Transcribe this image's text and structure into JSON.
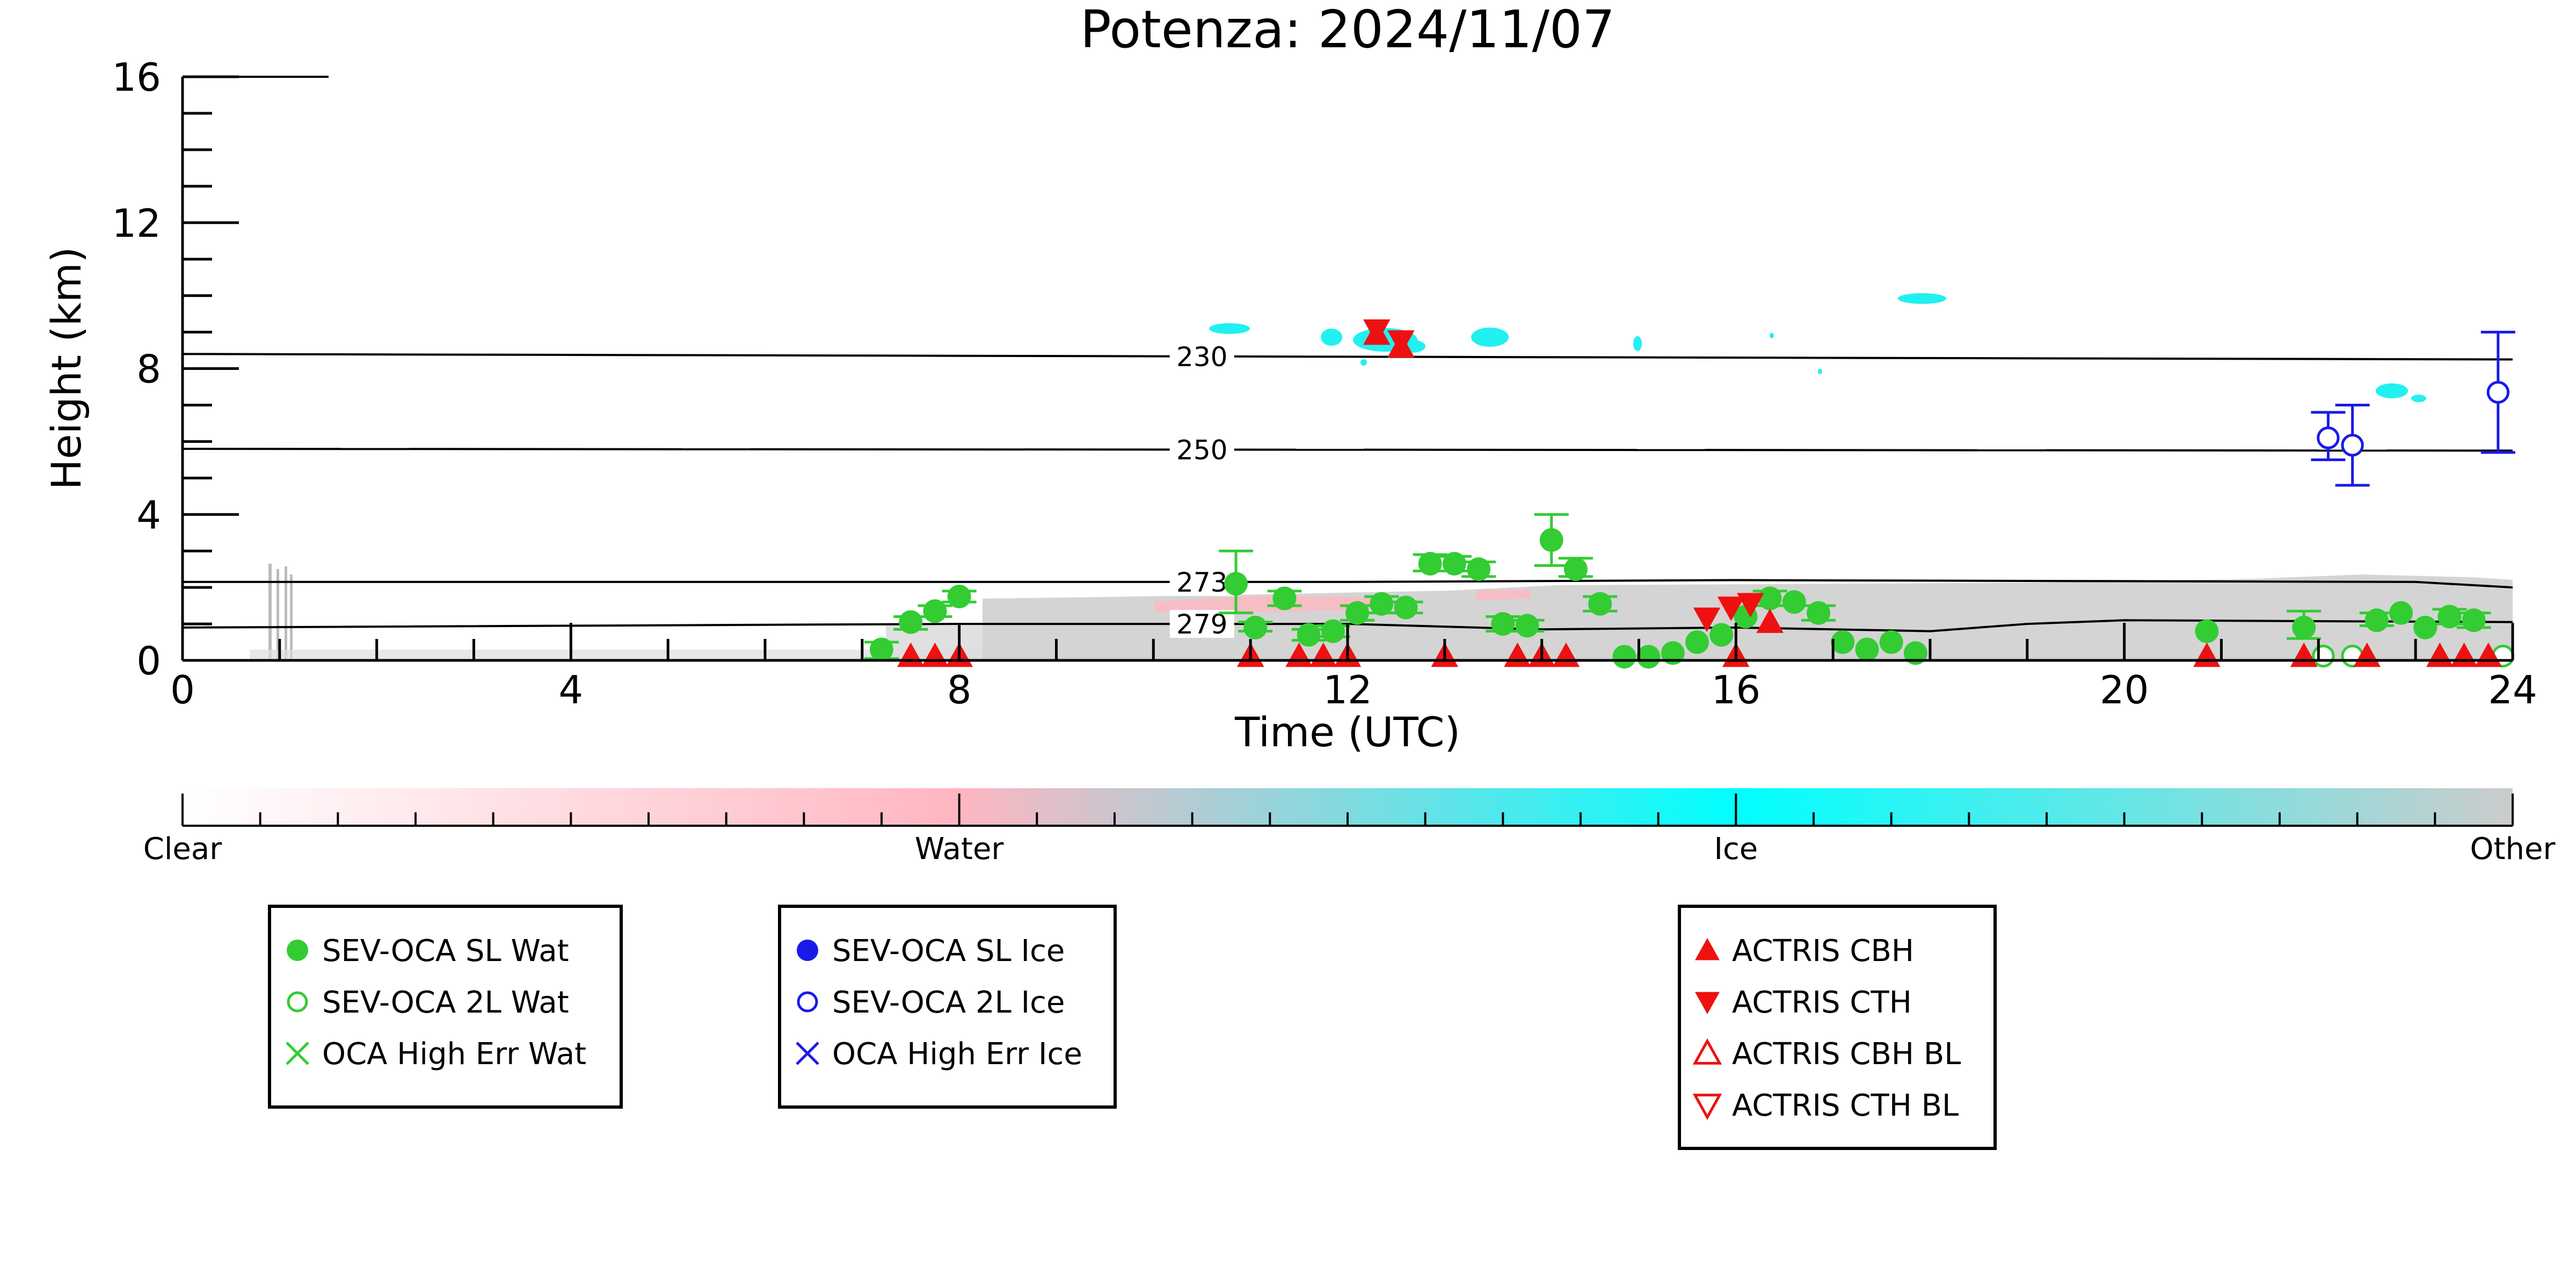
{
  "chart_data": {
    "type": "scatter",
    "title": "Potenza: 2024/11/07",
    "xlabel": "Time (UTC)",
    "ylabel": "Height (km)",
    "xlim": [
      0,
      24
    ],
    "ylim": [
      0,
      16
    ],
    "x_ticks": [
      0,
      4,
      8,
      12,
      16,
      20,
      24
    ],
    "y_ticks": [
      0,
      4,
      8,
      12,
      16
    ],
    "colors": {
      "water_marker": "#33cc33",
      "ice_marker": "#1a1ae6",
      "actris": "#ee1111",
      "ice_cloud": "#22f0f0",
      "other_cloud": "#cccccc",
      "water_cloud": "#ffb6c1"
    },
    "isotherms": [
      {
        "label": "230",
        "points": [
          [
            0,
            8.4
          ],
          [
            24,
            8.25
          ]
        ]
      },
      {
        "label": "250",
        "points": [
          [
            0,
            5.8
          ],
          [
            24,
            5.75
          ]
        ]
      },
      {
        "label": "273",
        "points": [
          [
            0,
            2.15
          ],
          [
            12,
            2.15
          ],
          [
            16,
            2.2
          ],
          [
            23,
            2.15
          ],
          [
            24,
            2.0
          ]
        ]
      },
      {
        "label": "279",
        "points": [
          [
            0,
            0.9
          ],
          [
            8,
            1.0
          ],
          [
            12,
            1.0
          ],
          [
            14,
            0.85
          ],
          [
            16,
            0.9
          ],
          [
            18,
            0.8
          ],
          [
            19,
            1.0
          ],
          [
            20,
            1.1
          ],
          [
            24,
            1.05
          ]
        ]
      }
    ],
    "series": [
      {
        "name": "SEV-OCA SL Wat",
        "marker": "filled-circle",
        "color": "#33cc33",
        "points": [
          [
            7.2,
            0.3
          ],
          [
            7.5,
            1.05
          ],
          [
            7.75,
            1.35
          ],
          [
            8.0,
            1.75
          ],
          [
            10.85,
            2.1
          ],
          [
            11.05,
            0.9
          ],
          [
            11.35,
            1.7
          ],
          [
            11.6,
            0.7
          ],
          [
            11.85,
            0.8
          ],
          [
            12.1,
            1.3
          ],
          [
            12.35,
            1.55
          ],
          [
            12.6,
            1.45
          ],
          [
            12.85,
            2.65
          ],
          [
            13.1,
            2.65
          ],
          [
            13.35,
            2.5
          ],
          [
            13.6,
            1.0
          ],
          [
            13.85,
            0.95
          ],
          [
            14.1,
            3.3
          ],
          [
            14.35,
            2.5
          ],
          [
            14.6,
            1.55
          ],
          [
            14.85,
            0.1
          ],
          [
            15.1,
            0.1
          ],
          [
            15.35,
            0.2
          ],
          [
            15.6,
            0.5
          ],
          [
            15.85,
            0.7
          ],
          [
            16.1,
            1.2
          ],
          [
            16.35,
            1.7
          ],
          [
            16.6,
            1.6
          ],
          [
            16.85,
            1.3
          ],
          [
            17.1,
            0.5
          ],
          [
            17.35,
            0.3
          ],
          [
            17.6,
            0.5
          ],
          [
            17.85,
            0.2
          ],
          [
            20.85,
            0.8
          ],
          [
            21.85,
            0.9
          ],
          [
            22.6,
            1.1
          ],
          [
            22.85,
            1.3
          ],
          [
            23.1,
            0.9
          ],
          [
            23.35,
            1.2
          ],
          [
            23.6,
            1.1
          ]
        ],
        "error_bars": [
          [
            7.2,
            0.05,
            0.5
          ],
          [
            7.5,
            0.85,
            1.2
          ],
          [
            7.75,
            1.2,
            1.5
          ],
          [
            8.0,
            1.6,
            1.9
          ],
          [
            10.85,
            1.3,
            3.0
          ],
          [
            11.05,
            0.8,
            1.05
          ],
          [
            11.35,
            1.5,
            1.9
          ],
          [
            11.6,
            0.55,
            0.85
          ],
          [
            11.85,
            0.65,
            0.95
          ],
          [
            12.1,
            1.1,
            1.5
          ],
          [
            12.35,
            1.3,
            1.75
          ],
          [
            12.6,
            1.3,
            1.6
          ],
          [
            12.85,
            2.45,
            2.9
          ],
          [
            13.1,
            2.45,
            2.85
          ],
          [
            13.35,
            2.3,
            2.7
          ],
          [
            13.6,
            0.8,
            1.2
          ],
          [
            13.85,
            0.8,
            1.1
          ],
          [
            14.1,
            2.6,
            4.0
          ],
          [
            14.35,
            2.3,
            2.8
          ],
          [
            14.6,
            1.35,
            1.75
          ],
          [
            16.35,
            1.5,
            1.9
          ],
          [
            16.85,
            1.1,
            1.5
          ],
          [
            21.85,
            0.6,
            1.35
          ],
          [
            22.6,
            0.95,
            1.3
          ],
          [
            23.35,
            1.0,
            1.4
          ],
          [
            23.6,
            0.9,
            1.3
          ]
        ]
      },
      {
        "name": "SEV-OCA 2L Wat",
        "marker": "open-circle",
        "color": "#33cc33",
        "points": [
          [
            22.05,
            0.05
          ],
          [
            22.35,
            0.05
          ],
          [
            23.9,
            0.05
          ]
        ]
      },
      {
        "name": "OCA High Err Wat",
        "marker": "cross",
        "color": "#33cc33",
        "points": []
      },
      {
        "name": "SEV-OCA SL Ice",
        "marker": "filled-circle",
        "color": "#1a1ae6",
        "points": []
      },
      {
        "name": "SEV-OCA 2L Ice",
        "marker": "open-circle",
        "color": "#1a1ae6",
        "points": [
          [
            22.1,
            6.1
          ],
          [
            22.35,
            5.9
          ],
          [
            23.85,
            7.35
          ]
        ],
        "error_bars": [
          [
            22.1,
            5.5,
            6.8
          ],
          [
            22.35,
            4.8,
            7.0
          ],
          [
            23.85,
            5.7,
            9.0
          ]
        ]
      },
      {
        "name": "OCA High Err Ice",
        "marker": "cross",
        "color": "#1a1ae6",
        "points": []
      },
      {
        "name": "ACTRIS CBH",
        "marker": "triangle-up",
        "color": "#ee1111",
        "points": [
          [
            7.5,
            0.05
          ],
          [
            7.75,
            0.05
          ],
          [
            8.0,
            0.05
          ],
          [
            11.0,
            0.05
          ],
          [
            11.5,
            0.05
          ],
          [
            11.75,
            0.05
          ],
          [
            12.0,
            0.05
          ],
          [
            13.0,
            0.05
          ],
          [
            13.75,
            0.05
          ],
          [
            14.0,
            0.05
          ],
          [
            14.25,
            0.05
          ],
          [
            16.0,
            0.05
          ],
          [
            16.35,
            1.05
          ],
          [
            12.55,
            8.6
          ],
          [
            12.3,
            8.95
          ],
          [
            20.85,
            0.05
          ],
          [
            21.85,
            0.05
          ],
          [
            22.5,
            0.05
          ],
          [
            23.25,
            0.05
          ],
          [
            23.5,
            0.05
          ],
          [
            23.75,
            0.05
          ]
        ]
      },
      {
        "name": "ACTRIS CTH",
        "marker": "triangle-down",
        "color": "#ee1111",
        "points": [
          [
            12.3,
            9.05
          ],
          [
            12.55,
            8.75
          ],
          [
            15.7,
            1.15
          ],
          [
            15.95,
            1.45
          ],
          [
            16.15,
            1.55
          ]
        ]
      },
      {
        "name": "ACTRIS CBH BL",
        "marker": "open-triangle-up",
        "color": "#ee1111",
        "points": []
      },
      {
        "name": "ACTRIS CTH BL",
        "marker": "open-triangle-down",
        "color": "#ee1111",
        "points": []
      }
    ],
    "colorbar": {
      "labels": [
        "Clear",
        "Water",
        "Ice",
        "Other"
      ],
      "stops": [
        "#ffffff",
        "#ffb6c1",
        "#00ffff",
        "#cccccc"
      ]
    },
    "legend_groups": [
      [
        "SEV-OCA SL Wat",
        "SEV-OCA 2L Wat",
        "OCA High Err Wat"
      ],
      [
        "SEV-OCA SL Ice",
        "SEV-OCA 2L Ice",
        "OCA High Err Ice"
      ],
      [
        "ACTRIS CBH",
        "ACTRIS CTH",
        "ACTRIS CBH BL",
        "ACTRIS CTH BL"
      ]
    ]
  }
}
